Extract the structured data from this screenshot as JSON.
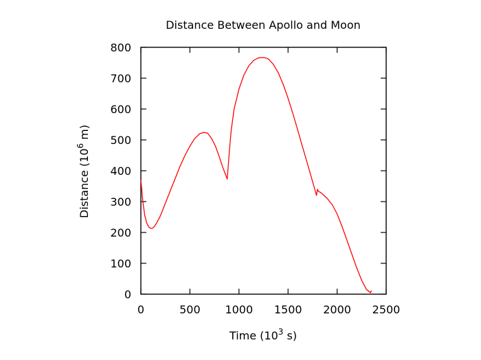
{
  "chart_data": {
    "type": "line",
    "title": "Distance Between Apollo and Moon",
    "xlabel": {
      "prefix": "Time (10",
      "sup": "3",
      "suffix": " s)"
    },
    "ylabel": {
      "prefix": "Distance (10",
      "sup": "6",
      "suffix": " m)"
    },
    "xlim": [
      0,
      2500
    ],
    "ylim": [
      0,
      800
    ],
    "xticks": [
      0,
      500,
      1000,
      1500,
      2000,
      2500
    ],
    "yticks": [
      0,
      100,
      200,
      300,
      400,
      500,
      600,
      700,
      800
    ],
    "x_tick_labels": [
      "0",
      "500",
      "1000",
      "1500",
      "2000",
      "2500"
    ],
    "y_tick_labels": [
      "0",
      "100",
      "200",
      "300",
      "400",
      "500",
      "600",
      "700",
      "800"
    ],
    "grid": false,
    "series": [
      {
        "color": "#ff0000",
        "x": [
          0,
          20,
          40,
          60,
          80,
          100,
          120,
          140,
          160,
          200,
          250,
          300,
          350,
          400,
          450,
          500,
          550,
          600,
          640,
          680,
          720,
          760,
          800,
          830,
          860,
          880,
          900,
          920,
          950,
          1000,
          1050,
          1100,
          1150,
          1200,
          1250,
          1280,
          1300,
          1350,
          1400,
          1450,
          1500,
          1550,
          1600,
          1650,
          1700,
          1750,
          1790,
          1800,
          1810,
          1830,
          1860,
          1900,
          1950,
          2000,
          2050,
          2100,
          2150,
          2200,
          2250,
          2300,
          2340,
          2350
        ],
        "y": [
          370,
          300,
          255,
          230,
          218,
          213,
          214,
          220,
          230,
          255,
          295,
          335,
          375,
          415,
          450,
          480,
          505,
          520,
          524,
          522,
          505,
          480,
          445,
          415,
          390,
          373,
          455,
          530,
          600,
          665,
          710,
          740,
          758,
          766,
          767,
          765,
          762,
          745,
          718,
          680,
          635,
          585,
          530,
          475,
          420,
          365,
          320,
          340,
          333,
          330,
          322,
          310,
          290,
          260,
          220,
          175,
          130,
          85,
          45,
          15,
          5,
          12
        ]
      }
    ]
  }
}
